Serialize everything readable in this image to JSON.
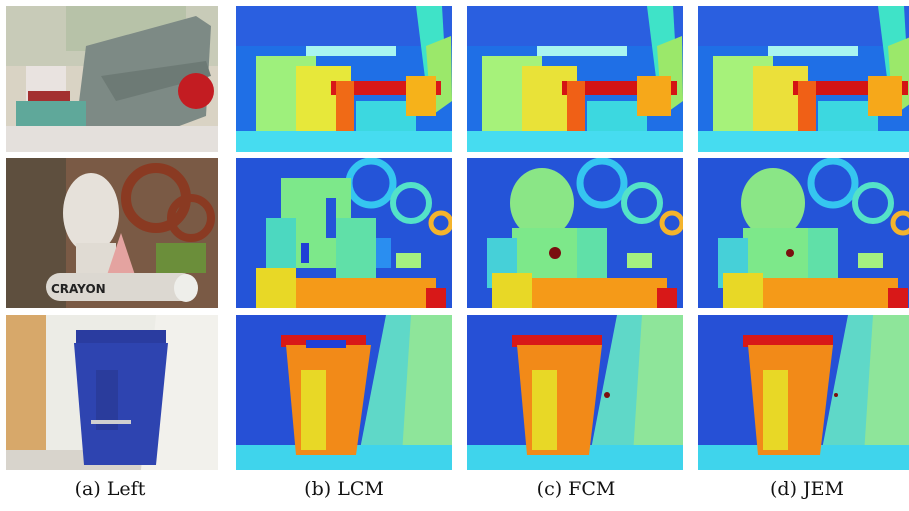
{
  "figure": {
    "captions": [
      "(a) Left",
      "(b) LCM",
      "(c) FCM",
      "(d) JEM"
    ]
  },
  "colors": {
    "depth_far": "#1f3fd6",
    "depth_mid": "#34e0d0",
    "depth_near": "#f07a1a",
    "depth_nearest": "#d01010"
  }
}
